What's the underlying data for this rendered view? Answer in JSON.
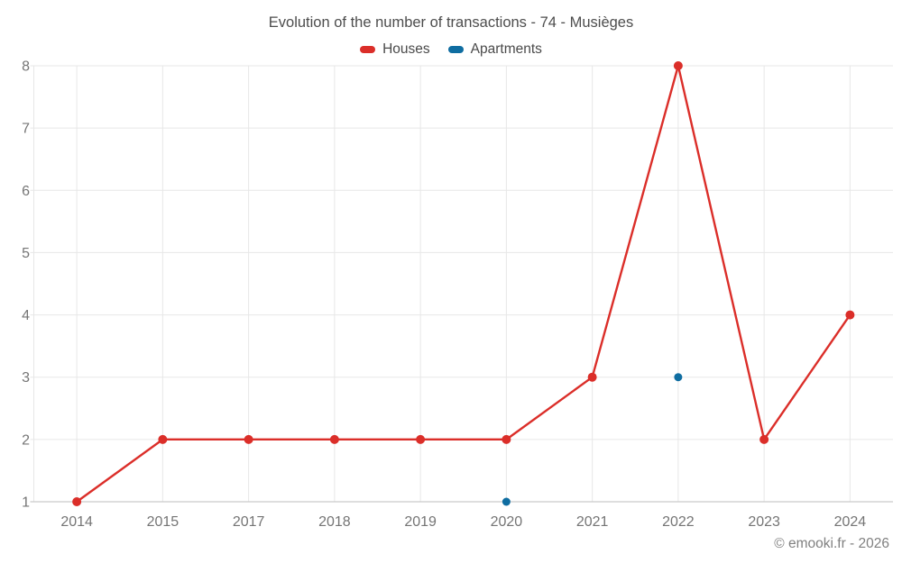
{
  "title": "Evolution of the number of transactions - 74 - Musièges",
  "footer": "© emooki.fr - 2026",
  "legend": {
    "items": [
      {
        "label": "Houses",
        "color": "#db2e29"
      },
      {
        "label": "Apartments",
        "color": "#0f6da1"
      }
    ]
  },
  "colors": {
    "houses": "#db2e29",
    "apartments": "#0f6da1",
    "gridline": "#e7e7e7",
    "axis_line": "#c9c9c9",
    "axis_label": "#757575",
    "title_text": "#4d4d4d",
    "footer_text": "#808080"
  },
  "chart_data": {
    "type": "line",
    "title": "Evolution of the number of transactions - 74 - Musièges",
    "categories": [
      "2014",
      "2015",
      "2017",
      "2018",
      "2019",
      "2020",
      "2021",
      "2022",
      "2023",
      "2024"
    ],
    "series": [
      {
        "name": "Houses",
        "color": "#db2e29",
        "marker_radius": 5,
        "line_width": 2.4,
        "values": [
          1,
          2,
          2,
          2,
          2,
          2,
          3,
          8,
          2,
          4
        ]
      },
      {
        "name": "Apartments",
        "color": "#0f6da1",
        "marker_radius": 4.5,
        "line_width": 2.4,
        "values": [
          null,
          null,
          null,
          null,
          null,
          1,
          null,
          3,
          null,
          null
        ]
      }
    ],
    "xlabel": "",
    "ylabel": "",
    "ylim": [
      1,
      8
    ],
    "yticks": [
      1,
      2,
      3,
      4,
      5,
      6,
      7,
      8
    ],
    "grid": true,
    "legend_position": "top"
  }
}
